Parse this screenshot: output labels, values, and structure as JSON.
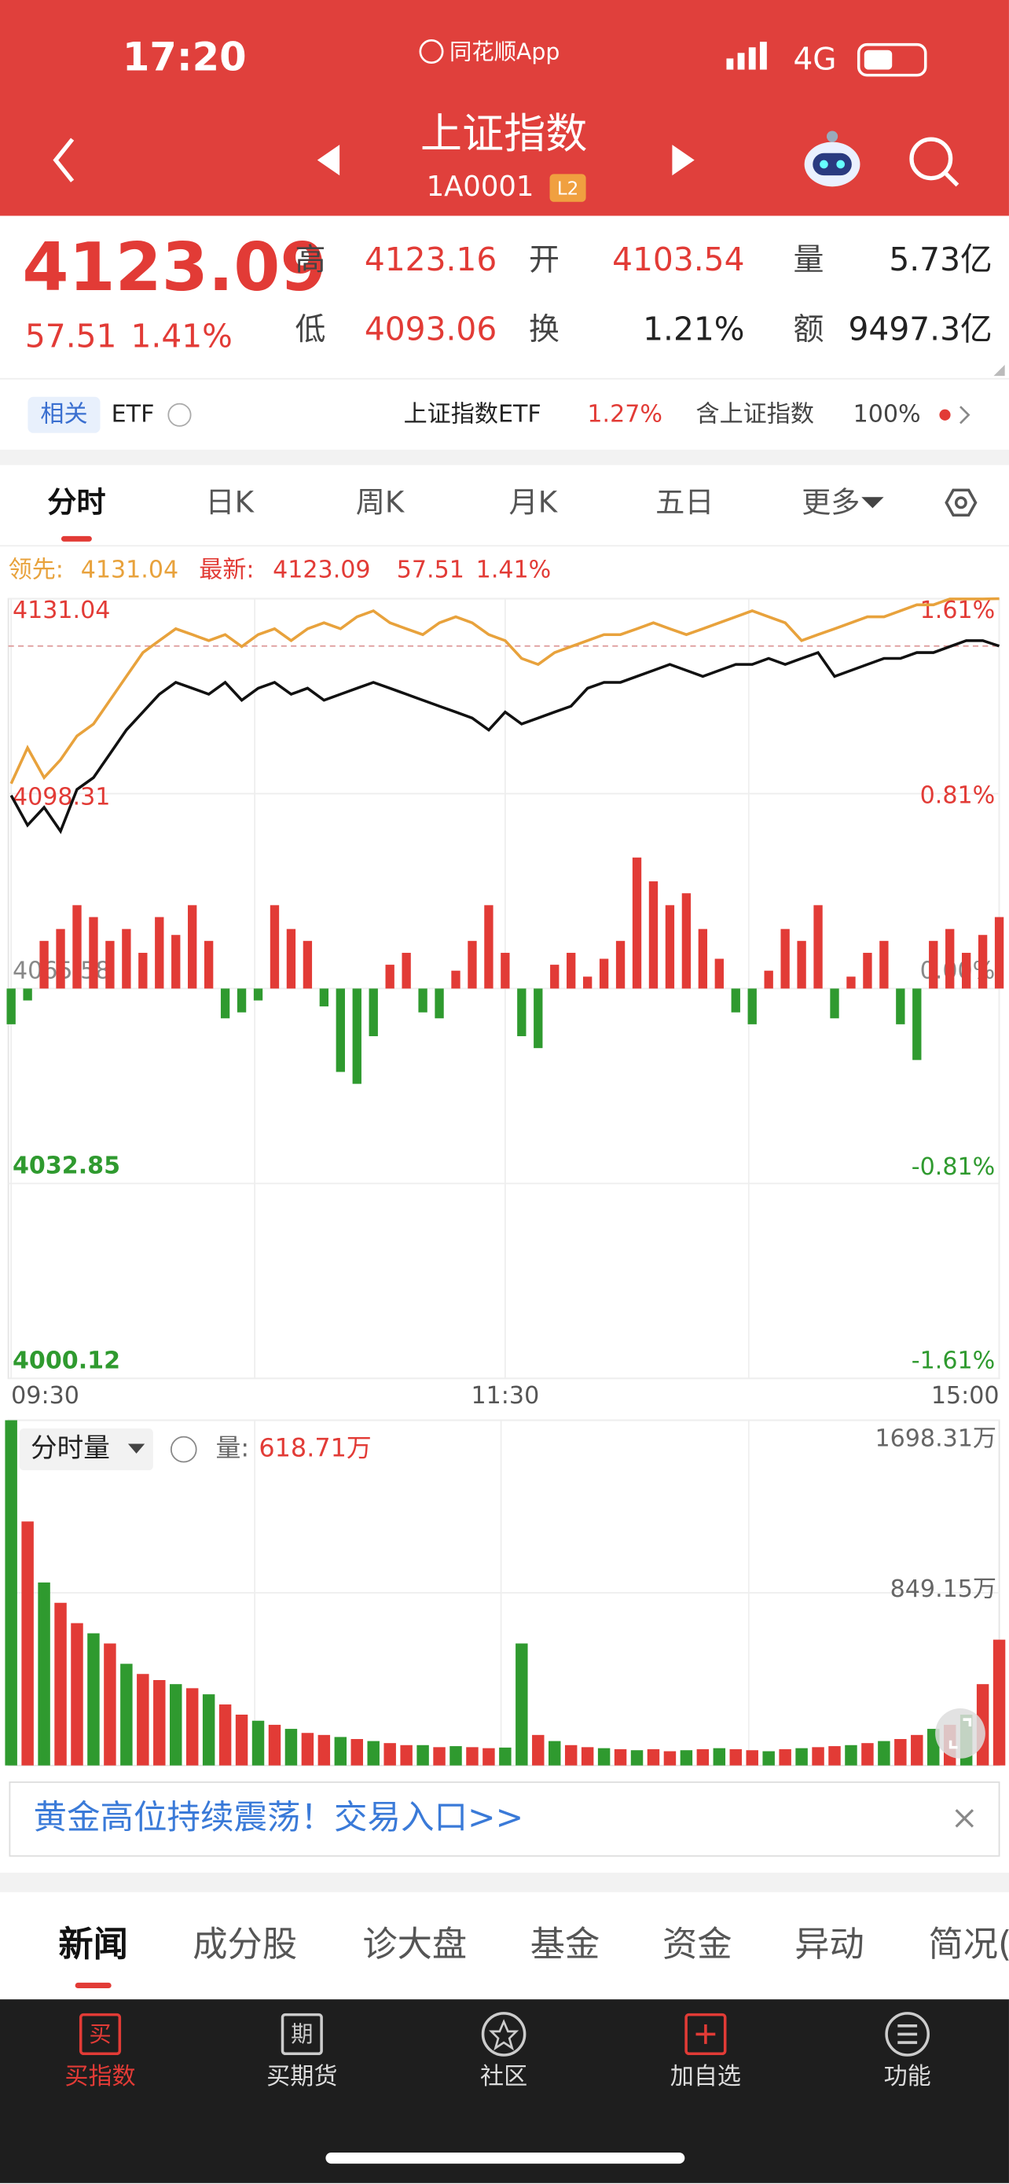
{
  "status": {
    "time": "17:20",
    "app": "同花顺App",
    "network": "4G"
  },
  "header": {
    "title": "上证指数",
    "code": "1A0001",
    "badge": "L2"
  },
  "quote": {
    "price": "4123.09",
    "change": "57.51",
    "percent": "1.41%",
    "stats": [
      [
        "高",
        "4123.16"
      ],
      [
        "开",
        "4103.54"
      ],
      [
        "量",
        "5.73亿"
      ],
      [
        "低",
        "4093.06"
      ],
      [
        "换",
        "1.21%"
      ],
      [
        "额",
        "9497.3亿"
      ]
    ]
  },
  "related": {
    "tag": "相关",
    "label": "ETF",
    "etf_name": "上证指数ETF",
    "etf_change": "1.27%",
    "holding_label": "含上证指数",
    "holding": "100%"
  },
  "tabs": [
    "分时",
    "日K",
    "周K",
    "月K",
    "五日",
    "更多"
  ],
  "chart_data": [
    {
      "type": "line",
      "legend": {
        "lead_label": "领先:",
        "lead_value": "4131.04",
        "latest_label": "最新:",
        "latest_value": "4123.09",
        "latest_change": "57.51",
        "latest_percent": "1.41%"
      },
      "x": [
        0,
        4,
        8,
        12,
        16,
        20,
        24,
        28,
        32,
        36,
        40,
        44,
        48,
        52,
        56,
        60,
        64,
        68,
        72,
        76,
        80,
        84,
        88,
        92,
        96,
        100,
        104,
        108,
        112,
        116,
        120,
        124,
        128,
        132,
        136,
        140,
        144,
        148,
        152,
        156,
        160,
        164,
        168,
        172,
        176,
        180,
        184,
        188,
        192,
        196,
        200,
        204,
        208,
        212,
        216,
        220,
        224,
        228,
        232,
        236,
        240
      ],
      "xlim": [
        0,
        240
      ],
      "xticks": [
        {
          "value": 0,
          "label": "09:30"
        },
        {
          "value": 120,
          "label": "11:30"
        },
        {
          "value": 240,
          "label": "15:00"
        }
      ],
      "ylim": [
        4000.12,
        4131.04
      ],
      "yticks": [
        {
          "value": 4000.12,
          "label": "4000.12"
        },
        {
          "value": 4032.85,
          "label": "4032.85"
        },
        {
          "value": 4065.58,
          "label": "4065.58"
        },
        {
          "value": 4098.31,
          "label": "4098.31"
        },
        {
          "value": 4131.04,
          "label": "4131.04"
        }
      ],
      "y2lim": [
        -1.61,
        1.61
      ],
      "y2ticks": [
        {
          "value": -1.61,
          "label": "-1.61%"
        },
        {
          "value": -0.81,
          "label": "-0.81%"
        },
        {
          "value": 0,
          "label": "0.00%"
        },
        {
          "value": 0.81,
          "label": "0.81%"
        },
        {
          "value": 1.61,
          "label": "1.61%"
        }
      ],
      "grid": true,
      "series": [
        {
          "color": "#111111",
          "values": [
            4098,
            4093,
            4096,
            4092,
            4099,
            4101,
            4105,
            4109,
            4112,
            4115,
            4117,
            4116,
            4115,
            4117,
            4114,
            4116,
            4117,
            4115,
            4116,
            4114,
            4115,
            4116,
            4117,
            4116,
            4115,
            4114,
            4113,
            4112,
            4111,
            4109,
            4112,
            4110,
            4111,
            4112,
            4113,
            4116,
            4117,
            4117,
            4118,
            4119,
            4120,
            4119,
            4118,
            4119,
            4120,
            4120,
            4121,
            4120,
            4121,
            4122,
            4118,
            4119,
            4120,
            4121,
            4121,
            4122,
            4122,
            4123,
            4124,
            4124,
            4123.09
          ]
        },
        {
          "color": "#e8a23c",
          "values": [
            4100,
            4106,
            4101,
            4104,
            4108,
            4110,
            4114,
            4118,
            4122,
            4124,
            4126,
            4125,
            4124,
            4125,
            4123,
            4125,
            4126,
            4124,
            4126,
            4127,
            4126,
            4128,
            4129,
            4127,
            4126,
            4125,
            4127,
            4128,
            4127,
            4125,
            4124,
            4121,
            4120,
            4122,
            4123,
            4124,
            4125,
            4125,
            4126,
            4127,
            4126,
            4125,
            4126,
            4127,
            4128,
            4129,
            4128,
            4127,
            4124,
            4125,
            4126,
            4127,
            4128,
            4128,
            4129,
            4130,
            4130,
            4131,
            4131,
            4131,
            4131.04
          ]
        }
      ],
      "bars": {
        "up_color": "#e23b36",
        "down_color": "#2f9a2f",
        "values": [
          -6,
          -2,
          8,
          10,
          14,
          12,
          8,
          10,
          6,
          12,
          9,
          14,
          8,
          -5,
          -4,
          -2,
          14,
          10,
          8,
          -3,
          -14,
          -16,
          -8,
          4,
          6,
          -4,
          -5,
          3,
          8,
          14,
          6,
          -8,
          -10,
          4,
          6,
          2,
          5,
          8,
          22,
          18,
          14,
          16,
          10,
          5,
          -4,
          -6,
          3,
          10,
          8,
          14,
          -5,
          2,
          6,
          8,
          -6,
          -12,
          8,
          10,
          6,
          9,
          12
        ]
      }
    },
    {
      "type": "bar",
      "title": "分时量",
      "value_name": "量:",
      "current": "618.71万",
      "x": [
        0,
        4,
        8,
        12,
        16,
        20,
        24,
        28,
        32,
        36,
        40,
        44,
        48,
        52,
        56,
        60,
        64,
        68,
        72,
        76,
        80,
        84,
        88,
        92,
        96,
        100,
        104,
        108,
        112,
        116,
        120,
        124,
        128,
        132,
        136,
        140,
        144,
        148,
        152,
        156,
        160,
        164,
        168,
        172,
        176,
        180,
        184,
        188,
        192,
        196,
        200,
        204,
        208,
        212,
        216,
        220,
        224,
        228,
        232,
        236,
        240
      ],
      "xlim": [
        0,
        240
      ],
      "ylim": [
        0,
        1698.31
      ],
      "yticks": [
        {
          "value": 849.15,
          "label": "849.15万"
        },
        {
          "value": 1698.31,
          "label": "1698.31万"
        }
      ],
      "grid": true,
      "values": [
        1698,
        1200,
        900,
        800,
        700,
        650,
        600,
        500,
        450,
        420,
        400,
        380,
        350,
        300,
        250,
        220,
        200,
        180,
        160,
        150,
        140,
        130,
        120,
        110,
        100,
        100,
        90,
        95,
        90,
        85,
        88,
        600,
        150,
        120,
        100,
        90,
        85,
        80,
        75,
        80,
        70,
        75,
        80,
        85,
        80,
        75,
        70,
        80,
        85,
        90,
        95,
        100,
        110,
        120,
        130,
        150,
        180,
        200,
        250,
        400,
        618.71
      ],
      "colors": [
        "#2f9a2f",
        "#e23b36",
        "#2f9a2f",
        "#e23b36",
        "#e23b36",
        "#2f9a2f",
        "#e23b36",
        "#2f9a2f",
        "#e23b36",
        "#e23b36",
        "#2f9a2f",
        "#e23b36",
        "#2f9a2f",
        "#e23b36",
        "#e23b36",
        "#2f9a2f",
        "#e23b36",
        "#2f9a2f",
        "#e23b36",
        "#e23b36",
        "#2f9a2f",
        "#e23b36",
        "#2f9a2f",
        "#e23b36",
        "#e23b36",
        "#2f9a2f",
        "#e23b36",
        "#2f9a2f",
        "#e23b36",
        "#e23b36",
        "#2f9a2f",
        "#2f9a2f",
        "#e23b36",
        "#2f9a2f",
        "#e23b36",
        "#e23b36",
        "#2f9a2f",
        "#e23b36",
        "#2f9a2f",
        "#e23b36",
        "#e23b36",
        "#2f9a2f",
        "#e23b36",
        "#2f9a2f",
        "#e23b36",
        "#e23b36",
        "#2f9a2f",
        "#e23b36",
        "#2f9a2f",
        "#e23b36",
        "#e23b36",
        "#2f9a2f",
        "#e23b36",
        "#2f9a2f",
        "#e23b36",
        "#e23b36",
        "#2f9a2f",
        "#e23b36",
        "#2f9a2f",
        "#e23b36",
        "#e23b36"
      ]
    }
  ],
  "banner": {
    "text": "黄金高位持续震荡！交易入口>>"
  },
  "news_tabs": [
    "新闻",
    "成分股",
    "诊大盘",
    "基金",
    "资金",
    "异动",
    "简况("
  ],
  "nav": [
    {
      "icon": "买",
      "label": "买指数"
    },
    {
      "icon": "期",
      "label": "买期货"
    },
    {
      "label": "社区"
    },
    {
      "label": "加自选"
    },
    {
      "label": "功能"
    }
  ]
}
